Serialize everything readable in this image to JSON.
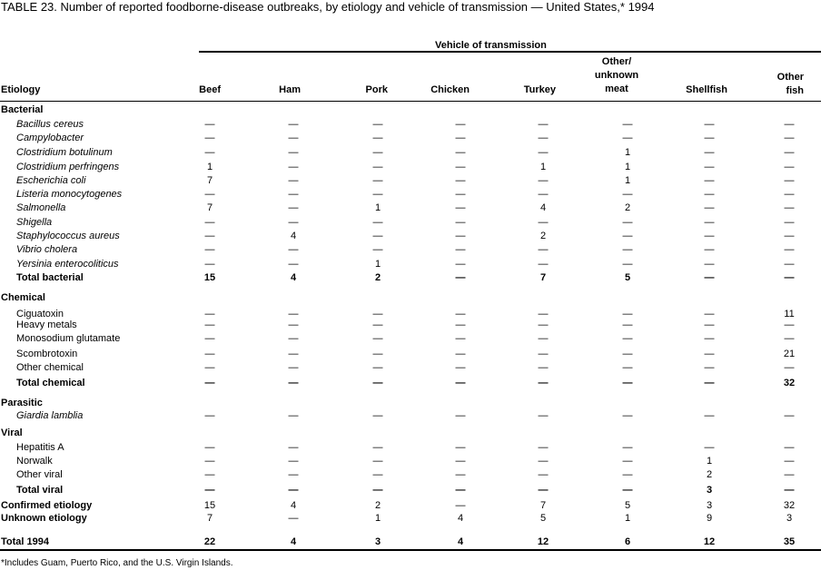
{
  "title": "TABLE 23. Number of reported foodborne-disease  outbreaks, by etiology and vehicle of transmission — United States,* 1994",
  "spanner": "Vehicle of transmission",
  "columns": [
    "Beef",
    "Ham",
    "Pork",
    "Chicken",
    "Turkey",
    "Other/ unknown meat",
    "Shellfish",
    "Other fish"
  ],
  "stub_header": "Etiology",
  "rows": [
    {
      "label": "Bacterial",
      "style": "group"
    },
    {
      "label": "Bacillus cereus",
      "style": "italic",
      "values": [
        "—",
        "—",
        "—",
        "—",
        "—",
        "—",
        "—",
        "—"
      ]
    },
    {
      "label": "Campylobacter",
      "style": "italic",
      "values": [
        "—",
        "—",
        "—",
        "—",
        "—",
        "—",
        "—",
        "—"
      ]
    },
    {
      "label": "Clostridium botulinum",
      "style": "italic",
      "values": [
        "—",
        "—",
        "—",
        "—",
        "—",
        "1",
        "—",
        "—"
      ]
    },
    {
      "label": "Clostridium perfringens",
      "style": "italic",
      "values": [
        "1",
        "—",
        "—",
        "—",
        "1",
        "1",
        "—",
        "—"
      ]
    },
    {
      "label": "Escherichia coli",
      "style": "italic",
      "values": [
        "7",
        "—",
        "—",
        "—",
        "—",
        "1",
        "—",
        "—"
      ]
    },
    {
      "label": "Listeria monocytogenes",
      "style": "italic",
      "values": [
        "—",
        "—",
        "—",
        "—",
        "—",
        "—",
        "—",
        "—"
      ]
    },
    {
      "label": "Salmonella",
      "style": "italic",
      "values": [
        "7",
        "—",
        "1",
        "—",
        "4",
        "2",
        "—",
        "—"
      ]
    },
    {
      "label": "Shigella",
      "style": "italic",
      "values": [
        "—",
        "—",
        "—",
        "—",
        "—",
        "—",
        "—",
        "—"
      ]
    },
    {
      "label": "Staphylococcus aureus",
      "style": "italic",
      "values": [
        "—",
        "4",
        "—",
        "—",
        "2",
        "—",
        "—",
        "—"
      ]
    },
    {
      "label": "Vibrio cholera",
      "style": "italic",
      "values": [
        "—",
        "—",
        "—",
        "—",
        "—",
        "—",
        "—",
        "—"
      ]
    },
    {
      "label": "Yersinia enterocoliticus",
      "style": "italic",
      "values": [
        "—",
        "—",
        "1",
        "—",
        "—",
        "—",
        "—",
        "—"
      ]
    },
    {
      "label": "Total bacterial",
      "style": "subtotal",
      "values": [
        "15",
        "4",
        "2",
        "—",
        "7",
        "5",
        "—",
        "—"
      ]
    },
    {
      "label": "Chemical",
      "style": "group"
    },
    {
      "label": "Ciguatoxin",
      "style": "item",
      "values": [
        "—",
        "—",
        "—",
        "—",
        "—",
        "—",
        "—",
        "11"
      ]
    },
    {
      "label": "Heavy metals",
      "style": "item",
      "values": [
        "—",
        "—",
        "—",
        "—",
        "—",
        "—",
        "—",
        "—"
      ]
    },
    {
      "label": "Monosodium glutamate",
      "style": "item",
      "values": [
        "—",
        "—",
        "—",
        "—",
        "—",
        "—",
        "—",
        "—"
      ]
    },
    {
      "label": "Scombrotoxin",
      "style": "item",
      "values": [
        "—",
        "—",
        "—",
        "—",
        "—",
        "—",
        "—",
        "21"
      ]
    },
    {
      "label": "Other chemical",
      "style": "item",
      "values": [
        "—",
        "—",
        "—",
        "—",
        "—",
        "—",
        "—",
        "—"
      ]
    },
    {
      "label": "Total chemical",
      "style": "subtotal",
      "values": [
        "—",
        "—",
        "—",
        "—",
        "—",
        "—",
        "—",
        "32"
      ]
    },
    {
      "label": "Parasitic",
      "style": "group"
    },
    {
      "label": "Giardia lamblia",
      "style": "italic",
      "values": [
        "—",
        "—",
        "—",
        "—",
        "—",
        "—",
        "—",
        "—"
      ]
    },
    {
      "label": "Viral",
      "style": "group"
    },
    {
      "label": "Hepatitis A",
      "style": "item",
      "values": [
        "—",
        "—",
        "—",
        "—",
        "—",
        "—",
        "—",
        "—"
      ]
    },
    {
      "label": "Norwalk",
      "style": "item",
      "values": [
        "—",
        "—",
        "—",
        "—",
        "—",
        "—",
        "1",
        "—"
      ]
    },
    {
      "label": "Other viral",
      "style": "item",
      "values": [
        "—",
        "—",
        "—",
        "—",
        "—",
        "—",
        "2",
        "—"
      ]
    },
    {
      "label": "Total viral",
      "style": "subtotal",
      "values": [
        "—",
        "—",
        "—",
        "—",
        "—",
        "—",
        "3",
        "—"
      ]
    },
    {
      "label": "Confirmed etiology",
      "style": "summary",
      "values": [
        "15",
        "4",
        "2",
        "—",
        "7",
        "5",
        "3",
        "32"
      ]
    },
    {
      "label": "Unknown etiology",
      "style": "summary",
      "values": [
        "7",
        "—",
        "1",
        "4",
        "5",
        "1",
        "9",
        "3"
      ]
    },
    {
      "label": "Total 1994",
      "style": "total",
      "values": [
        "22",
        "4",
        "3",
        "4",
        "12",
        "6",
        "12",
        "35"
      ]
    }
  ],
  "footnote": "*Includes Guam, Puerto Rico, and the U.S. Virgin Islands."
}
